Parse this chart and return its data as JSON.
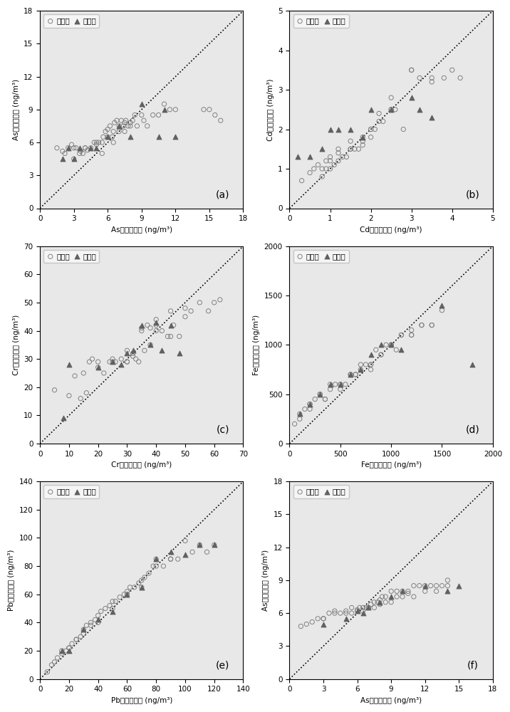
{
  "panels": [
    {
      "label": "(a)",
      "xlabel": "As浓度观测值 (ng/m³)",
      "ylabel": "As浓度模拟值 (ng/m³)",
      "xlim": [
        0,
        18
      ],
      "ylim": [
        0,
        18
      ],
      "xticks": [
        0,
        3,
        6,
        9,
        12,
        15,
        18
      ],
      "yticks": [
        0,
        3,
        6,
        9,
        12,
        15,
        18
      ],
      "train_x": [
        1.5,
        2.0,
        2.2,
        2.5,
        2.8,
        3.0,
        3.2,
        3.5,
        3.6,
        3.8,
        4.0,
        4.2,
        4.5,
        4.8,
        5.0,
        5.2,
        5.5,
        5.6,
        5.8,
        6.0,
        6.2,
        6.4,
        6.5,
        6.6,
        6.8,
        7.0,
        7.2,
        7.4,
        7.5,
        7.6,
        7.8,
        8.0,
        8.2,
        8.4,
        8.6,
        9.0,
        9.2,
        9.5,
        10.0,
        10.5,
        11.0,
        11.5,
        12.0,
        14.5,
        15.0,
        15.5,
        16.0,
        3.0,
        4.0,
        5.0,
        6.0,
        7.0,
        8.0,
        5.5,
        6.5,
        7.5
      ],
      "train_y": [
        5.5,
        5.2,
        5.0,
        5.5,
        5.8,
        5.5,
        5.5,
        5.0,
        5.2,
        5.0,
        5.5,
        5.3,
        5.5,
        6.0,
        5.8,
        6.0,
        6.0,
        6.5,
        7.0,
        7.2,
        7.5,
        6.5,
        7.0,
        7.8,
        8.0,
        7.5,
        8.0,
        7.5,
        7.8,
        8.0,
        7.5,
        7.8,
        8.0,
        8.5,
        7.5,
        8.5,
        8.0,
        7.5,
        8.5,
        8.5,
        9.5,
        9.0,
        9.0,
        9.0,
        9.0,
        8.5,
        8.0,
        4.5,
        5.5,
        6.0,
        6.5,
        7.0,
        7.5,
        5.0,
        6.0,
        7.0
      ],
      "val_x": [
        2.0,
        2.5,
        3.0,
        3.5,
        4.5,
        5.0,
        6.0,
        7.0,
        8.0,
        9.0,
        10.5,
        11.0,
        12.0
      ],
      "val_y": [
        4.5,
        5.5,
        4.5,
        5.5,
        5.5,
        5.5,
        6.5,
        7.5,
        6.5,
        9.5,
        6.5,
        9.0,
        6.5
      ]
    },
    {
      "label": "(b)",
      "xlabel": "Cd浓度观测值 (ng/m³)",
      "ylabel": "Cd浓度模拟值 (ng/m³)",
      "xlim": [
        0,
        5
      ],
      "ylim": [
        0,
        5
      ],
      "xticks": [
        0,
        1,
        2,
        3,
        4,
        5
      ],
      "yticks": [
        0,
        1,
        2,
        3,
        4,
        5
      ],
      "train_x": [
        0.3,
        0.5,
        0.6,
        0.7,
        0.8,
        0.9,
        1.0,
        1.0,
        1.1,
        1.2,
        1.2,
        1.3,
        1.4,
        1.5,
        1.5,
        1.6,
        1.7,
        1.8,
        1.8,
        2.0,
        2.0,
        2.1,
        2.2,
        2.3,
        2.5,
        2.5,
        2.6,
        2.8,
        3.0,
        3.2,
        3.5,
        3.8,
        4.0,
        4.2,
        0.8,
        0.9,
        1.0,
        1.2,
        1.5,
        1.8,
        2.0,
        2.2,
        2.5,
        3.0,
        3.5
      ],
      "train_y": [
        0.7,
        0.9,
        1.0,
        1.1,
        1.0,
        1.0,
        1.0,
        1.2,
        1.1,
        1.2,
        1.4,
        1.3,
        1.3,
        1.5,
        1.7,
        1.5,
        1.5,
        1.6,
        1.8,
        1.8,
        2.0,
        2.0,
        2.2,
        2.2,
        2.8,
        2.5,
        2.5,
        2.0,
        3.5,
        3.3,
        3.2,
        3.3,
        3.5,
        3.3,
        0.8,
        1.2,
        1.3,
        1.5,
        1.5,
        1.7,
        2.0,
        2.4,
        2.5,
        3.5,
        3.3
      ],
      "val_x": [
        0.2,
        0.5,
        0.8,
        1.0,
        1.2,
        1.5,
        1.8,
        2.0,
        2.5,
        3.0,
        3.2,
        3.5
      ],
      "val_y": [
        1.3,
        1.3,
        1.5,
        2.0,
        2.0,
        2.0,
        1.8,
        2.5,
        2.5,
        2.8,
        2.5,
        2.3
      ]
    },
    {
      "label": "(c)",
      "xlabel": "Cr浓度观测值 (ng/m³)",
      "ylabel": "Cr浓度模拟值 (ng/m³)",
      "xlim": [
        0,
        70
      ],
      "ylim": [
        0,
        70
      ],
      "xticks": [
        0,
        10,
        20,
        30,
        40,
        50,
        60,
        70
      ],
      "yticks": [
        0,
        10,
        20,
        30,
        40,
        50,
        60,
        70
      ],
      "train_x": [
        5,
        10,
        12,
        15,
        17,
        18,
        20,
        22,
        24,
        25,
        26,
        28,
        30,
        30,
        32,
        33,
        34,
        35,
        36,
        37,
        38,
        38,
        40,
        40,
        42,
        44,
        45,
        46,
        48,
        50,
        52,
        55,
        58,
        60,
        62,
        14,
        16,
        20,
        25,
        30,
        32,
        35,
        40,
        45,
        50
      ],
      "train_y": [
        19,
        17,
        24,
        25,
        29,
        30,
        27,
        25,
        29,
        30,
        29,
        30,
        29,
        33,
        32,
        30,
        29,
        40,
        33,
        42,
        35,
        41,
        40,
        44,
        40,
        38,
        38,
        42,
        38,
        45,
        47,
        50,
        47,
        50,
        51,
        16,
        18,
        29,
        29,
        29,
        31,
        41,
        42,
        47,
        48
      ],
      "val_x": [
        8,
        10,
        20,
        25,
        28,
        30,
        32,
        35,
        38,
        40,
        42,
        45,
        48
      ],
      "val_y": [
        9,
        28,
        27,
        29,
        28,
        32,
        33,
        42,
        35,
        43,
        33,
        42,
        32
      ]
    },
    {
      "label": "(d)",
      "xlabel": "Fe浓度观测值 (ng/m³)",
      "ylabel": "Fe浓度模拟值 (ng/m³)",
      "xlim": [
        0,
        2000
      ],
      "ylim": [
        0,
        2000
      ],
      "xticks": [
        0,
        500,
        1000,
        1500,
        2000
      ],
      "yticks": [
        0,
        500,
        1000,
        1500,
        2000
      ],
      "train_x": [
        50,
        100,
        150,
        200,
        250,
        300,
        350,
        400,
        450,
        500,
        550,
        600,
        650,
        700,
        750,
        800,
        850,
        900,
        950,
        1000,
        1050,
        1100,
        1200,
        1300,
        1400,
        1500,
        100,
        200,
        300,
        400,
        500,
        600,
        700,
        800,
        900,
        1000,
        1100,
        1200,
        1300,
        1400,
        200,
        350,
        500,
        650,
        800,
        1000,
        1200
      ],
      "train_y": [
        200,
        300,
        350,
        400,
        450,
        500,
        450,
        550,
        600,
        550,
        600,
        700,
        700,
        800,
        800,
        750,
        950,
        900,
        1000,
        1000,
        950,
        1100,
        1100,
        1200,
        1200,
        1350,
        250,
        400,
        500,
        600,
        600,
        700,
        750,
        800,
        900,
        1000,
        1100,
        1100,
        1200,
        1200,
        350,
        450,
        600,
        700,
        800,
        1000,
        1150
      ],
      "val_x": [
        100,
        200,
        300,
        400,
        500,
        600,
        700,
        800,
        900,
        1000,
        1100,
        1500,
        1800
      ],
      "val_y": [
        300,
        400,
        500,
        600,
        600,
        700,
        750,
        900,
        1000,
        1000,
        950,
        1400,
        800
      ]
    },
    {
      "label": "(e)",
      "xlabel": "Pb浓度观测值 (ng/m³)",
      "ylabel": "Pb浓度模拟值 (ng/m³)",
      "xlim": [
        0,
        140
      ],
      "ylim": [
        0,
        140
      ],
      "xticks": [
        0,
        20,
        40,
        60,
        80,
        100,
        120,
        140
      ],
      "yticks": [
        0,
        20,
        40,
        60,
        80,
        100,
        120,
        140
      ],
      "train_x": [
        5,
        8,
        10,
        12,
        15,
        18,
        20,
        22,
        25,
        28,
        30,
        32,
        35,
        38,
        40,
        42,
        45,
        48,
        50,
        52,
        55,
        58,
        60,
        62,
        65,
        68,
        70,
        72,
        75,
        78,
        80,
        85,
        90,
        95,
        100,
        105,
        110,
        115,
        120,
        15,
        20,
        25,
        30,
        35,
        40,
        50,
        60,
        70,
        80,
        90
      ],
      "train_y": [
        5,
        10,
        12,
        15,
        18,
        20,
        22,
        25,
        28,
        30,
        35,
        38,
        40,
        42,
        45,
        48,
        50,
        52,
        55,
        55,
        58,
        60,
        62,
        65,
        65,
        68,
        70,
        72,
        75,
        80,
        85,
        80,
        85,
        85,
        98,
        90,
        95,
        90,
        95,
        20,
        22,
        28,
        32,
        38,
        40,
        50,
        60,
        65,
        80,
        85
      ],
      "val_x": [
        15,
        20,
        30,
        40,
        50,
        60,
        70,
        80,
        90,
        100,
        110,
        120
      ],
      "val_y": [
        20,
        20,
        35,
        42,
        48,
        60,
        65,
        85,
        90,
        88,
        95,
        95
      ]
    },
    {
      "label": "(f)",
      "xlabel": "As浓度观测值 (ng/m³)",
      "ylabel": "As浓度模拟值 (ng/m³)",
      "xlim": [
        0,
        18
      ],
      "ylim": [
        0,
        18
      ],
      "xticks": [
        0,
        3,
        6,
        9,
        12,
        15,
        18
      ],
      "yticks": [
        0,
        3,
        6,
        9,
        12,
        15,
        18
      ],
      "train_x": [
        1.0,
        1.5,
        2.0,
        2.5,
        3.0,
        3.5,
        4.0,
        4.5,
        5.0,
        5.5,
        6.0,
        6.2,
        6.5,
        6.8,
        7.0,
        7.2,
        7.5,
        7.8,
        8.0,
        8.2,
        8.5,
        9.0,
        9.5,
        10.0,
        10.5,
        11.0,
        11.5,
        12.0,
        12.5,
        13.0,
        13.5,
        14.0,
        3.0,
        4.0,
        5.0,
        6.0,
        7.0,
        8.0,
        9.0,
        10.0,
        11.0,
        12.0,
        13.0,
        14.0,
        5.5,
        6.5,
        7.5,
        8.5,
        9.5,
        10.5
      ],
      "train_y": [
        4.8,
        5.0,
        5.2,
        5.5,
        5.5,
        6.0,
        6.2,
        6.0,
        6.2,
        6.5,
        6.3,
        6.5,
        6.5,
        6.5,
        6.5,
        6.8,
        7.0,
        7.0,
        7.2,
        7.5,
        7.5,
        8.0,
        8.0,
        8.0,
        8.0,
        8.5,
        8.5,
        8.5,
        8.5,
        8.5,
        8.5,
        9.0,
        5.5,
        6.0,
        6.0,
        6.2,
        6.5,
        6.8,
        7.0,
        7.5,
        7.5,
        8.0,
        8.0,
        8.5,
        6.0,
        6.2,
        6.5,
        7.0,
        7.5,
        7.8
      ],
      "val_x": [
        3.0,
        5.0,
        6.0,
        6.5,
        7.0,
        8.0,
        9.0,
        10.0,
        12.0,
        14.0,
        15.0
      ],
      "val_y": [
        5.0,
        5.5,
        6.2,
        6.0,
        6.5,
        7.0,
        7.5,
        8.0,
        8.5,
        8.0,
        8.5
      ]
    }
  ],
  "train_color": "#808080",
  "val_color": "#606060",
  "train_marker": "o",
  "val_marker": "^",
  "marker_size_train": 20,
  "marker_size_val": 25,
  "legend_train": "训练值",
  "legend_val": "验证值",
  "fig_bg": "#ffffff",
  "panel_bg": "#e8e8e8"
}
